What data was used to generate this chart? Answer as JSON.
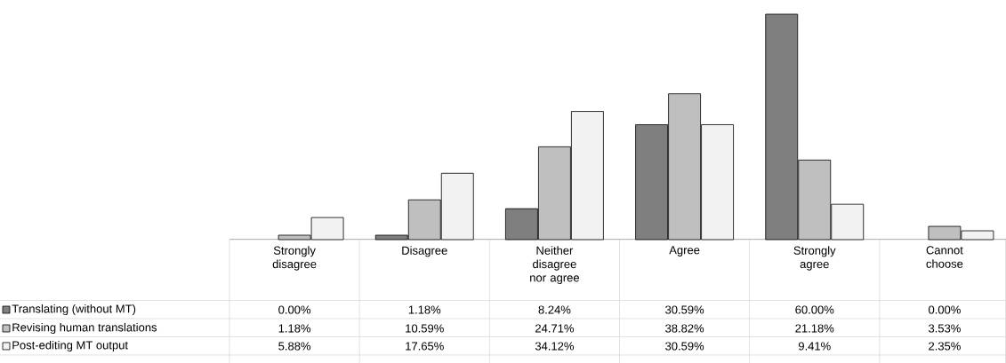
{
  "chart_data": {
    "type": "bar",
    "categories": [
      "Strongly disagree",
      "Disagree",
      "Neither disagree nor agree",
      "Agree",
      "Strongly agree",
      "Cannot choose"
    ],
    "series": [
      {
        "name": "Translating (without MT)",
        "color": "#7f7f7f",
        "values": [
          0.0,
          1.18,
          8.24,
          30.59,
          60.0,
          0.0
        ],
        "value_labels": [
          "0.00%",
          "1.18%",
          "8.24%",
          "30.59%",
          "60.00%",
          "0.00%"
        ]
      },
      {
        "name": "Revising human translations",
        "color": "#bfbfbf",
        "values": [
          1.18,
          10.59,
          24.71,
          38.82,
          21.18,
          3.53
        ],
        "value_labels": [
          "1.18%",
          "10.59%",
          "24.71%",
          "38.82%",
          "21.18%",
          "3.53%"
        ]
      },
      {
        "name": "Post-editing MT output",
        "color": "#f2f2f2",
        "values": [
          5.88,
          17.65,
          34.12,
          30.59,
          9.41,
          2.35
        ],
        "value_labels": [
          "5.88%",
          "17.65%",
          "34.12%",
          "30.59%",
          "9.41%",
          "2.35%"
        ]
      }
    ],
    "legend": "bottom"
  }
}
